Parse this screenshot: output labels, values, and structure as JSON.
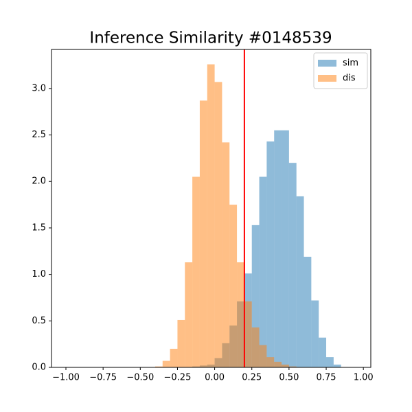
{
  "chart_data": {
    "type": "histogram",
    "title": "Inference Similarity #0148539",
    "bins": [
      -1,
      -0.95,
      -0.9,
      -0.85,
      -0.8,
      -0.75,
      -0.7,
      -0.65,
      -0.6,
      -0.55,
      -0.5,
      -0.45,
      -0.4,
      -0.35,
      -0.3,
      -0.25,
      -0.2,
      -0.15,
      -0.1,
      -0.05,
      0,
      0.05,
      0.1,
      0.15,
      0.2,
      0.25,
      0.3,
      0.35,
      0.4,
      0.45,
      0.5,
      0.55,
      0.6,
      0.65,
      0.7,
      0.75,
      0.8,
      0.85,
      0.9,
      0.95,
      1
    ],
    "series": [
      {
        "name": "sim",
        "color": "#1f77b4",
        "values": [
          0,
          0,
          0,
          0,
          0,
          0,
          0,
          0,
          0,
          0,
          0,
          0,
          0,
          0,
          0,
          0,
          0,
          0.01,
          0.02,
          0.03,
          0.1,
          0.26,
          0.45,
          0.71,
          1.01,
          1.53,
          2.05,
          2.43,
          2.55,
          2.55,
          2.2,
          1.84,
          1.19,
          0.72,
          0.32,
          0.11,
          0.03,
          0,
          0,
          0
        ]
      },
      {
        "name": "dis",
        "color": "#ff7f0e",
        "values": [
          0,
          0,
          0,
          0,
          0,
          0,
          0,
          0,
          0,
          0,
          0,
          0,
          0.01,
          0.07,
          0.2,
          0.51,
          1.13,
          2.05,
          2.87,
          3.26,
          3.07,
          2.42,
          1.75,
          1.13,
          0.71,
          0.43,
          0.24,
          0.11,
          0.06,
          0.03,
          0.01,
          0,
          0,
          0,
          0,
          0,
          0,
          0,
          0,
          0
        ]
      }
    ],
    "opacity": 0.5,
    "vline": {
      "x": 0.2,
      "color": "#ff0000"
    },
    "xlim": [
      -1.097,
      1.05
    ],
    "ylim": [
      0,
      3.42
    ],
    "xticks": [
      {
        "value": -1,
        "label": "−1.00"
      },
      {
        "value": -0.75,
        "label": "−0.75"
      },
      {
        "value": -0.5,
        "label": "−0.50"
      },
      {
        "value": -0.25,
        "label": "−0.25"
      },
      {
        "value": 0,
        "label": "0.00"
      },
      {
        "value": 0.25,
        "label": "0.25"
      },
      {
        "value": 0.5,
        "label": "0.50"
      },
      {
        "value": 0.75,
        "label": "0.75"
      },
      {
        "value": 1,
        "label": "1.00"
      }
    ],
    "yticks": [
      {
        "value": 0,
        "label": "0.0"
      },
      {
        "value": 0.5,
        "label": "0.5"
      },
      {
        "value": 1,
        "label": "1.0"
      },
      {
        "value": 1.5,
        "label": "1.5"
      },
      {
        "value": 2,
        "label": "2.0"
      },
      {
        "value": 2.5,
        "label": "2.5"
      },
      {
        "value": 3,
        "label": "3.0"
      }
    ],
    "legend": "upper right"
  }
}
